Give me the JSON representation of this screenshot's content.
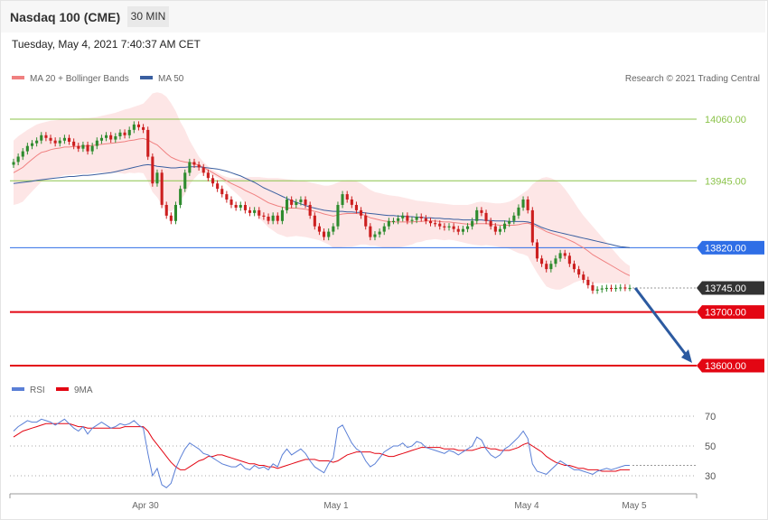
{
  "header": {
    "title": "Nasdaq 100 (CME)",
    "timeframe": "30 MIN",
    "datetime": "Tuesday, May 4, 2021 7:40:37 AM CET"
  },
  "colors": {
    "ma20": "#f08080",
    "ma50": "#3a5fa0",
    "band_fill": "#fde3e3",
    "up_candle": "#2e8b2e",
    "down_candle": "#cc1f1f",
    "resistance": "#8bc34a",
    "pivot": "#2f6ee6",
    "support": "#e30613",
    "current": "#333333",
    "arrow": "#2c5aa0",
    "rsi": "#5a7fd6",
    "rsi_ma": "#e30613"
  },
  "chart_data": [
    {
      "type": "candlestick",
      "legend": [
        {
          "label": "MA 20 + Bollinger Bands",
          "color": "#f08080"
        },
        {
          "label": "MA 50",
          "color": "#3a5fa0"
        }
      ],
      "credit": "Research © 2021 Trading Central",
      "x_ticks": [
        "Apr 30",
        "May 1",
        "May 4",
        "May 5"
      ],
      "ylim": [
        13540,
        14110
      ],
      "levels": [
        {
          "value": 14060,
          "label": "14060.00",
          "kind": "resistance"
        },
        {
          "value": 13945,
          "label": "13945.00",
          "kind": "resistance"
        },
        {
          "value": 13820,
          "label": "13820.00",
          "kind": "pivot"
        },
        {
          "value": 13745,
          "label": "13745.00",
          "kind": "current"
        },
        {
          "value": 13700,
          "label": "13700.00",
          "kind": "support"
        },
        {
          "value": 13600,
          "label": "13600.00",
          "kind": "support"
        }
      ],
      "projection": {
        "from": 13745,
        "to": 13600,
        "direction": "down"
      },
      "closes": [
        13980,
        13990,
        14000,
        14010,
        14015,
        14020,
        14030,
        14025,
        14020,
        14015,
        14020,
        14025,
        14018,
        14010,
        14005,
        14012,
        14000,
        14010,
        14020,
        14025,
        14030,
        14022,
        14028,
        14035,
        14030,
        14040,
        14050,
        14045,
        14040,
        13990,
        13940,
        13960,
        13900,
        13880,
        13870,
        13900,
        13930,
        13960,
        13980,
        13975,
        13970,
        13960,
        13950,
        13940,
        13930,
        13920,
        13910,
        13900,
        13895,
        13900,
        13890,
        13885,
        13890,
        13880,
        13878,
        13870,
        13880,
        13870,
        13890,
        13910,
        13900,
        13905,
        13910,
        13900,
        13880,
        13860,
        13850,
        13840,
        13850,
        13860,
        13900,
        13920,
        13910,
        13900,
        13890,
        13880,
        13860,
        13840,
        13845,
        13850,
        13860,
        13870,
        13870,
        13875,
        13880,
        13870,
        13872,
        13878,
        13875,
        13870,
        13866,
        13865,
        13860,
        13858,
        13860,
        13855,
        13850,
        13855,
        13860,
        13870,
        13890,
        13885,
        13870,
        13860,
        13850,
        13855,
        13865,
        13870,
        13880,
        13895,
        13910,
        13890,
        13830,
        13800,
        13790,
        13780,
        13790,
        13800,
        13810,
        13805,
        13790,
        13780,
        13770,
        13760,
        13750,
        13740,
        13742,
        13744,
        13745,
        13744,
        13745,
        13746,
        13745,
        13745
      ],
      "ma20": [
        13960,
        13965,
        13970,
        13978,
        13985,
        13992,
        13998,
        14000,
        14003,
        14005,
        14006,
        14008,
        14008,
        14009,
        14009,
        14010,
        14010,
        14011,
        14012,
        14013,
        14014,
        14015,
        14016,
        14017,
        14018,
        14020,
        14021,
        14023,
        14024,
        14021,
        14016,
        14012,
        14004,
        13996,
        13989,
        13985,
        13982,
        13980,
        13979,
        13977,
        13974,
        13970,
        13965,
        13960,
        13955,
        13950,
        13945,
        13940,
        13936,
        13932,
        13927,
        13923,
        13919,
        13914,
        13909,
        13904,
        13901,
        13898,
        13896,
        13894,
        13894,
        13894,
        13893,
        13892,
        13890,
        13888,
        13886,
        13883,
        13881,
        13879,
        13881,
        13883,
        13884,
        13884,
        13884,
        13883,
        13880,
        13876,
        13874,
        13872,
        13870,
        13869,
        13868,
        13868,
        13868,
        13868,
        13868,
        13869,
        13869,
        13870,
        13870,
        13870,
        13869,
        13868,
        13868,
        13867,
        13866,
        13865,
        13864,
        13864,
        13865,
        13865,
        13865,
        13864,
        13863,
        13862,
        13862,
        13862,
        13862,
        13863,
        13865,
        13866,
        13863,
        13859,
        13855,
        13850,
        13847,
        13844,
        13841,
        13838,
        13834,
        13830,
        13825,
        13820,
        13814,
        13807,
        13802,
        13797,
        13792,
        13787,
        13782,
        13777,
        13772,
        13768
      ],
      "band_upper": [
        14020,
        14028,
        14034,
        14040,
        14045,
        14050,
        14053,
        14055,
        14057,
        14058,
        14059,
        14060,
        14060,
        14061,
        14061,
        14062,
        14062,
        14063,
        14064,
        14066,
        14068,
        14070,
        14072,
        14075,
        14078,
        14080,
        14083,
        14086,
        14089,
        14098,
        14108,
        14110,
        14108,
        14102,
        14090,
        14075,
        14055,
        14040,
        14020,
        14005,
        13990,
        13980,
        13972,
        13965,
        13960,
        13955,
        13952,
        13950,
        13950,
        13950,
        13951,
        13952,
        13952,
        13952,
        13951,
        13950,
        13950,
        13950,
        13949,
        13948,
        13947,
        13946,
        13945,
        13944,
        13942,
        13940,
        13938,
        13936,
        13936,
        13938,
        13942,
        13945,
        13946,
        13946,
        13944,
        13940,
        13934,
        13928,
        13924,
        13922,
        13920,
        13918,
        13917,
        13916,
        13914,
        13912,
        13910,
        13908,
        13907,
        13906,
        13905,
        13904,
        13903,
        13902,
        13901,
        13900,
        13900,
        13900,
        13900,
        13902,
        13905,
        13906,
        13905,
        13904,
        13903,
        13903,
        13904,
        13906,
        13910,
        13916,
        13922,
        13928,
        13938,
        13945,
        13950,
        13952,
        13950,
        13946,
        13940,
        13930,
        13918,
        13905,
        13892,
        13880,
        13870,
        13860,
        13850,
        13840,
        13830,
        13820,
        13810,
        13800,
        13792,
        13786
      ],
      "band_lower": [
        13900,
        13902,
        13906,
        13916,
        13925,
        13934,
        13943,
        13945,
        13949,
        13952,
        13953,
        13956,
        13956,
        13957,
        13957,
        13958,
        13958,
        13959,
        13960,
        13960,
        13960,
        13960,
        13960,
        13959,
        13958,
        13960,
        13959,
        13960,
        13959,
        13944,
        13924,
        13914,
        13900,
        13890,
        13888,
        13895,
        13909,
        13920,
        13938,
        13949,
        13958,
        13960,
        13958,
        13955,
        13950,
        13945,
        13938,
        13930,
        13922,
        13914,
        13903,
        13894,
        13886,
        13876,
        13867,
        13858,
        13852,
        13846,
        13843,
        13840,
        13841,
        13842,
        13841,
        13840,
        13838,
        13836,
        13834,
        13830,
        13826,
        13820,
        13820,
        13821,
        13822,
        13822,
        13824,
        13826,
        13826,
        13824,
        13824,
        13822,
        13820,
        13820,
        13819,
        13820,
        13822,
        13824,
        13826,
        13830,
        13831,
        13834,
        13835,
        13836,
        13835,
        13834,
        13835,
        13834,
        13832,
        13830,
        13828,
        13826,
        13825,
        13824,
        13825,
        13824,
        13823,
        13821,
        13820,
        13818,
        13814,
        13810,
        13808,
        13804,
        13788,
        13773,
        13760,
        13748,
        13744,
        13742,
        13742,
        13746,
        13750,
        13755,
        13758,
        13760,
        13758,
        13754,
        13754,
        13754,
        13754,
        13754,
        13754,
        13754,
        13752,
        13750
      ],
      "ma50": [
        13940,
        13941,
        13942,
        13943,
        13944,
        13946,
        13947,
        13948,
        13949,
        13950,
        13951,
        13952,
        13953,
        13953,
        13954,
        13955,
        13955,
        13956,
        13957,
        13958,
        13959,
        13960,
        13962,
        13964,
        13966,
        13968,
        13970,
        13972,
        13974,
        13975,
        13974,
        13972,
        13971,
        13970,
        13969,
        13969,
        13970,
        13970,
        13971,
        13971,
        13971,
        13970,
        13969,
        13968,
        13967,
        13965,
        13963,
        13960,
        13957,
        13954,
        13950,
        13946,
        13942,
        13937,
        13932,
        13928,
        13924,
        13920,
        13916,
        13912,
        13908,
        13905,
        13902,
        13899,
        13896,
        13894,
        13892,
        13890,
        13889,
        13888,
        13888,
        13888,
        13887,
        13887,
        13886,
        13886,
        13885,
        13884,
        13883,
        13882,
        13881,
        13880,
        13880,
        13879,
        13879,
        13878,
        13878,
        13877,
        13877,
        13876,
        13876,
        13875,
        13875,
        13874,
        13874,
        13873,
        13873,
        13872,
        13872,
        13872,
        13872,
        13872,
        13871,
        13871,
        13870,
        13870,
        13870,
        13869,
        13869,
        13869,
        13869,
        13868,
        13866,
        13862,
        13858,
        13855,
        13852,
        13850,
        13848,
        13846,
        13844,
        13842,
        13840,
        13838,
        13836,
        13834,
        13832,
        13830,
        13828,
        13826,
        13824,
        13822,
        13821,
        13820
      ]
    },
    {
      "type": "line",
      "legend": [
        {
          "label": "RSI",
          "color": "#5a7fd6"
        },
        {
          "label": "9MA",
          "color": "#e30613"
        }
      ],
      "y_ticks": [
        "70",
        "50",
        "30"
      ],
      "ylim": [
        18,
        82
      ],
      "rsi": [
        60,
        63,
        65,
        67,
        66,
        66,
        68,
        67,
        66,
        64,
        66,
        68,
        65,
        62,
        60,
        63,
        58,
        62,
        64,
        66,
        64,
        62,
        63,
        65,
        64,
        65,
        67,
        64,
        62,
        45,
        30,
        35,
        24,
        22,
        25,
        35,
        42,
        48,
        52,
        50,
        48,
        45,
        44,
        42,
        40,
        38,
        37,
        36,
        36,
        38,
        35,
        34,
        37,
        35,
        36,
        34,
        38,
        36,
        44,
        48,
        44,
        46,
        48,
        45,
        40,
        36,
        34,
        32,
        38,
        42,
        62,
        64,
        58,
        52,
        48,
        46,
        40,
        36,
        38,
        42,
        46,
        48,
        50,
        50,
        52,
        49,
        50,
        53,
        52,
        49,
        48,
        47,
        46,
        45,
        47,
        46,
        44,
        46,
        48,
        50,
        56,
        54,
        48,
        44,
        42,
        44,
        48,
        50,
        53,
        56,
        60,
        55,
        38,
        33,
        32,
        31,
        34,
        37,
        40,
        38,
        36,
        34,
        34,
        33,
        32,
        31,
        33,
        34,
        35,
        34,
        35,
        36,
        37,
        37
      ],
      "rsi_ma": [
        56,
        58,
        60,
        61,
        62,
        63,
        64,
        65,
        65,
        65,
        65,
        65,
        65,
        64,
        63,
        63,
        62,
        62,
        62,
        62,
        62,
        62,
        62,
        62,
        63,
        63,
        63,
        63,
        63,
        60,
        55,
        51,
        47,
        43,
        39,
        36,
        34,
        34,
        36,
        38,
        40,
        41,
        43,
        43,
        44,
        44,
        43,
        42,
        41,
        40,
        39,
        38,
        38,
        37,
        37,
        36,
        36,
        35,
        36,
        37,
        38,
        39,
        40,
        41,
        41,
        41,
        40,
        40,
        40,
        39,
        40,
        42,
        44,
        45,
        46,
        46,
        46,
        46,
        45,
        45,
        44,
        43,
        43,
        44,
        45,
        46,
        47,
        48,
        49,
        49,
        49,
        49,
        49,
        48,
        48,
        48,
        47,
        47,
        47,
        47,
        48,
        49,
        49,
        48,
        48,
        47,
        47,
        47,
        48,
        49,
        51,
        52,
        50,
        48,
        46,
        43,
        41,
        39,
        38,
        37,
        37,
        36,
        35,
        35,
        34,
        34,
        34,
        33,
        33,
        33,
        33,
        34,
        34,
        34
      ]
    }
  ]
}
